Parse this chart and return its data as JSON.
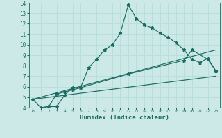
{
  "xlabel": "Humidex (Indice chaleur)",
  "xlim": [
    -0.5,
    23.5
  ],
  "ylim": [
    4,
    14
  ],
  "yticks": [
    4,
    5,
    6,
    7,
    8,
    9,
    10,
    11,
    12,
    13,
    14
  ],
  "xticks": [
    0,
    1,
    2,
    3,
    4,
    5,
    6,
    7,
    8,
    9,
    10,
    11,
    12,
    13,
    14,
    15,
    16,
    17,
    18,
    19,
    20,
    21,
    22,
    23
  ],
  "bg_color": "#cce9e8",
  "line_color": "#1a6b62",
  "grid_color": "#b8dede",
  "line1_x": [
    0,
    1,
    2,
    3,
    4,
    5,
    6,
    7,
    8,
    9,
    10,
    11,
    12,
    13,
    14,
    15,
    16,
    17,
    18,
    19,
    20,
    21,
    22,
    23
  ],
  "line1_y": [
    4.8,
    4.0,
    4.1,
    4.1,
    5.2,
    5.9,
    5.9,
    7.8,
    8.6,
    9.5,
    10.0,
    11.1,
    13.8,
    12.5,
    11.9,
    11.6,
    11.1,
    10.7,
    10.2,
    9.5,
    8.6,
    8.3,
    8.7,
    7.5
  ],
  "line2_x": [
    1,
    2,
    3,
    4,
    5,
    6,
    12,
    19,
    20,
    22,
    23
  ],
  "line2_y": [
    4.0,
    4.1,
    5.3,
    5.5,
    5.7,
    5.9,
    7.2,
    8.5,
    9.5,
    8.6,
    7.5
  ],
  "line3_x": [
    0,
    23
  ],
  "line3_y": [
    4.8,
    9.5
  ],
  "line4_x": [
    0,
    23
  ],
  "line4_y": [
    4.8,
    7.0
  ]
}
